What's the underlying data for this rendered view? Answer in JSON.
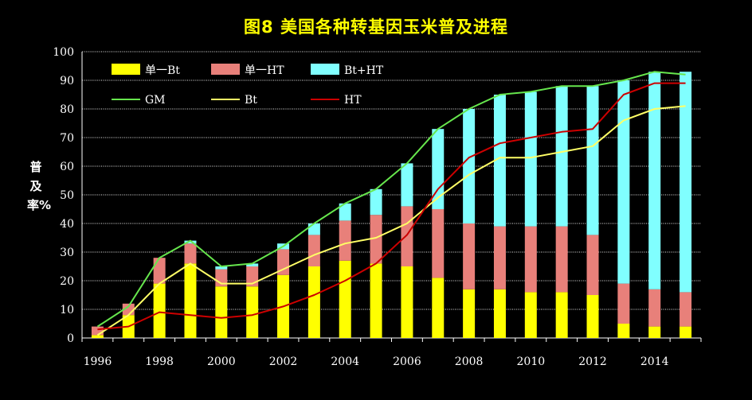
{
  "title": "图8  美国各种转基因玉米普及进程",
  "chart_data": {
    "type": "bar",
    "title": "图8  美国各种转基因玉米普及进程",
    "ylabel": "普及率%",
    "xlabel": "",
    "ylim": [
      0,
      100
    ],
    "yticks": [
      "0",
      "10",
      "20",
      "30",
      "40",
      "50",
      "60",
      "70",
      "80",
      "90",
      "100"
    ],
    "grid": true,
    "legend_position": "top-left",
    "categories": [
      "1996",
      "1997",
      "1998",
      "1999",
      "2000",
      "2001",
      "2002",
      "2003",
      "2004",
      "2005",
      "2006",
      "2007",
      "2008",
      "2009",
      "2010",
      "2011",
      "2012",
      "2013",
      "2014",
      "2015"
    ],
    "xtick_labels": [
      "1996",
      "",
      "1998",
      "",
      "2000",
      "",
      "2002",
      "",
      "2004",
      "",
      "2006",
      "",
      "2008",
      "",
      "2010",
      "",
      "2012",
      "",
      "2014",
      ""
    ],
    "stacked_series": [
      {
        "name": "单一Bt",
        "color": "#ffff00",
        "values": [
          1,
          8,
          19,
          26,
          18,
          18,
          22,
          25,
          27,
          26,
          25,
          21,
          17,
          17,
          16,
          16,
          15,
          5,
          4,
          4
        ]
      },
      {
        "name": "单一HT",
        "color": "#e8807a",
        "values": [
          3,
          4,
          9,
          7,
          6,
          7,
          9,
          11,
          14,
          17,
          21,
          24,
          23,
          22,
          23,
          23,
          21,
          14,
          13,
          12
        ]
      },
      {
        "name": "Bt+HT",
        "color": "#80ffff",
        "values": [
          0,
          0,
          0,
          1,
          1,
          1,
          2,
          4,
          6,
          9,
          15,
          28,
          40,
          46,
          47,
          49,
          52,
          71,
          76,
          77
        ]
      }
    ],
    "line_series": [
      {
        "name": "GM",
        "color": "#66e64d",
        "values": [
          4,
          11,
          28,
          34,
          25,
          26,
          32,
          40,
          47,
          52,
          61,
          73,
          80,
          85,
          86,
          88,
          88,
          90,
          93,
          92
        ]
      },
      {
        "name": "Bt",
        "color": "#ffff66",
        "values": [
          1,
          8,
          19,
          26,
          19,
          19,
          24,
          29,
          33,
          35,
          40,
          49,
          57,
          63,
          63,
          65,
          67,
          76,
          80,
          81
        ]
      },
      {
        "name": "HT",
        "color": "#cc0000",
        "values": [
          3,
          4,
          9,
          8,
          7,
          8,
          11,
          15,
          20,
          26,
          36,
          52,
          63,
          68,
          70,
          72,
          73,
          85,
          89,
          89
        ]
      }
    ]
  }
}
